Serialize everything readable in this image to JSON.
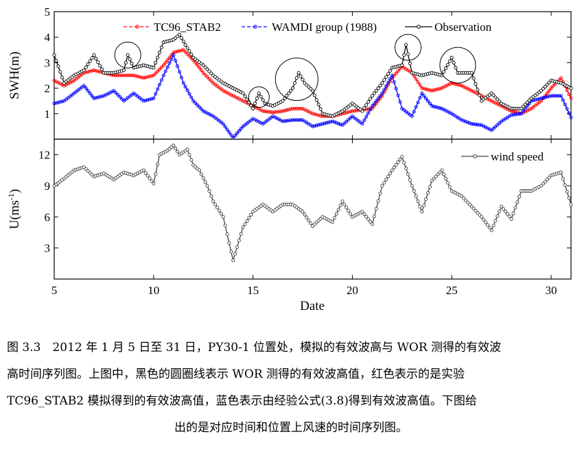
{
  "chart_data": [
    {
      "type": "line",
      "panel": "top",
      "ylabel": "SWH(m)",
      "xlim": [
        5,
        31
      ],
      "ylim": [
        0,
        5
      ],
      "yticks": [
        1,
        2,
        3,
        4,
        5
      ],
      "grid": false,
      "legend_position": "top",
      "series": [
        {
          "name": "TC96_STAB2",
          "color": "#ff0000",
          "marker": "circle",
          "x": [
            5,
            5.5,
            6,
            6.5,
            7,
            7.5,
            8,
            8.5,
            9,
            9.5,
            10,
            10.5,
            11,
            11.5,
            12,
            12.5,
            13,
            13.5,
            14,
            14.5,
            15,
            15.5,
            16,
            16.5,
            17,
            17.5,
            18,
            18.5,
            19,
            19.5,
            20,
            20.5,
            21,
            21.5,
            22,
            22.5,
            23,
            23.5,
            24,
            24.5,
            25,
            25.5,
            26,
            26.5,
            27,
            27.5,
            28,
            28.5,
            29,
            29.5,
            30,
            30.5,
            31
          ],
          "y": [
            2.3,
            2.1,
            2.3,
            2.6,
            2.7,
            2.6,
            2.5,
            2.5,
            2.5,
            2.4,
            2.5,
            2.9,
            3.4,
            3.5,
            3.1,
            2.6,
            2.2,
            1.9,
            1.7,
            1.5,
            1.3,
            1.1,
            1.05,
            1.1,
            1.2,
            1.2,
            1.0,
            0.9,
            0.9,
            1.0,
            1.1,
            1.15,
            1.2,
            1.7,
            2.4,
            2.85,
            2.6,
            2.0,
            1.9,
            2.0,
            2.2,
            2.1,
            1.9,
            1.7,
            1.5,
            1.3,
            1.1,
            1.0,
            1.2,
            1.5,
            2.0,
            2.4,
            1.6
          ]
        },
        {
          "name": "WAMDI group (1988)",
          "color": "#0000ff",
          "marker": "circle",
          "x": [
            5,
            5.5,
            6,
            6.5,
            7,
            7.5,
            8,
            8.5,
            9,
            9.5,
            10,
            10.5,
            11,
            11.5,
            12,
            12.5,
            13,
            13.5,
            14,
            14.5,
            15,
            15.5,
            16,
            16.5,
            17,
            17.5,
            18,
            18.5,
            19,
            19.5,
            20,
            20.5,
            21,
            21.5,
            22,
            22.5,
            23,
            23.5,
            24,
            24.5,
            25,
            25.5,
            26,
            26.5,
            27,
            27.5,
            28,
            28.5,
            29,
            29.5,
            30,
            30.5,
            31
          ],
          "y": [
            1.4,
            1.5,
            1.8,
            2.1,
            1.6,
            1.7,
            1.9,
            1.5,
            1.8,
            1.5,
            1.6,
            2.5,
            3.3,
            2.2,
            1.5,
            1.1,
            0.9,
            0.6,
            0.05,
            0.5,
            0.8,
            0.6,
            0.9,
            0.7,
            0.75,
            0.75,
            0.5,
            0.6,
            0.7,
            0.55,
            0.9,
            0.6,
            1.3,
            1.8,
            2.5,
            1.2,
            0.9,
            1.8,
            1.3,
            1.2,
            1.0,
            0.75,
            0.6,
            0.55,
            0.35,
            0.7,
            0.95,
            1.0,
            1.5,
            1.6,
            1.7,
            1.7,
            0.85
          ]
        },
        {
          "name": "Observation",
          "color": "#000000",
          "marker": "circle-open",
          "x": [
            5,
            5.5,
            6,
            6.5,
            7,
            7.5,
            8,
            8.5,
            8.7,
            9,
            9.5,
            10,
            10.5,
            11,
            11.3,
            11.6,
            12,
            12.5,
            13,
            13.5,
            14,
            14.5,
            15,
            15.3,
            15.6,
            16,
            16.5,
            17,
            17.3,
            17.6,
            18,
            18.5,
            19,
            19.5,
            20,
            20.5,
            21,
            21.5,
            22,
            22.5,
            22.7,
            23,
            23.5,
            24,
            24.5,
            25,
            25.3,
            25.6,
            26,
            26.5,
            27,
            27.5,
            28,
            28.5,
            29,
            29.5,
            30,
            30.5,
            31
          ],
          "y": [
            3.3,
            2.2,
            2.5,
            2.7,
            3.3,
            2.6,
            2.6,
            2.7,
            3.3,
            2.8,
            2.9,
            2.8,
            3.8,
            3.9,
            4.1,
            3.7,
            3.2,
            2.9,
            2.5,
            2.2,
            2.0,
            1.8,
            1.2,
            1.8,
            1.4,
            1.3,
            1.5,
            2.0,
            2.6,
            2.2,
            1.9,
            1.0,
            0.9,
            1.1,
            1.4,
            1.1,
            1.7,
            2.2,
            2.8,
            2.9,
            3.7,
            2.6,
            2.5,
            2.6,
            2.5,
            3.2,
            2.6,
            2.6,
            2.6,
            1.5,
            1.8,
            1.4,
            1.2,
            1.2,
            1.6,
            1.9,
            2.3,
            2.2,
            2.0
          ]
        }
      ],
      "highlight_circles": [
        {
          "x": 8.7,
          "y": 3.3
        },
        {
          "x": 15.3,
          "y": 1.65
        },
        {
          "x": 17.2,
          "y": 2.35
        },
        {
          "x": 22.8,
          "y": 3.6
        },
        {
          "x": 25.3,
          "y": 2.9
        }
      ]
    },
    {
      "type": "line",
      "panel": "bottom",
      "xlabel": "Date",
      "ylabel_prefix": "U(ms",
      "ylabel_superscript": "-1",
      "ylabel_suffix": ")",
      "xlim": [
        5,
        31
      ],
      "ylim": [
        0,
        13.5
      ],
      "xticks": [
        5,
        10,
        15,
        20,
        25,
        30
      ],
      "yticks": [
        3,
        6,
        9,
        12
      ],
      "grid": false,
      "legend_position": "top-right",
      "series": [
        {
          "name": "wind speed",
          "color": "#404040",
          "marker": "circle-open",
          "x": [
            5,
            5.5,
            6,
            6.5,
            7,
            7.5,
            8,
            8.5,
            9,
            9.5,
            10,
            10.3,
            10.7,
            11,
            11.3,
            11.7,
            12,
            12.3,
            12.7,
            13,
            13.5,
            14,
            14.5,
            15,
            15.5,
            16,
            16.5,
            17,
            17.5,
            18,
            18.5,
            19,
            19.5,
            20,
            20.5,
            21,
            21.5,
            22,
            22.5,
            23,
            23.5,
            24,
            24.5,
            25,
            25.5,
            26,
            26.5,
            27,
            27.5,
            28,
            28.5,
            29,
            29.5,
            30,
            30.5,
            31
          ],
          "y": [
            9.0,
            9.7,
            10.5,
            10.8,
            9.9,
            10.2,
            9.6,
            10.3,
            10.0,
            10.5,
            9.2,
            12.0,
            12.4,
            12.9,
            12.0,
            12.5,
            11.0,
            10.5,
            9.0,
            7.5,
            6.0,
            1.8,
            5.0,
            6.5,
            7.2,
            6.5,
            7.2,
            7.2,
            6.5,
            5.1,
            6.0,
            5.5,
            7.5,
            6.0,
            6.5,
            5.3,
            9.0,
            10.5,
            11.8,
            9.0,
            6.5,
            9.5,
            10.5,
            8.5,
            8.0,
            7.0,
            6.0,
            4.7,
            7.0,
            5.8,
            8.5,
            8.5,
            9.0,
            10.0,
            10.3,
            7.2
          ]
        }
      ]
    }
  ],
  "caption": {
    "line1": "图 3.3　2012 年 1 月 5 日至 31 日，PY30-1 位置处，模拟的有效波高与 WOR 测得的有效波",
    "line2": "高时间序列图。上图中，黑色的圆圈线表示 WOR 测得的有效波高值，红色表示的是实验",
    "line3": "TC96_STAB2 模拟得到的有效波高值，蓝色表示由经验公式(3.8)得到有效波高值。下图给",
    "line4": "出的是对应时间和位置上风速的时间序列图。"
  }
}
